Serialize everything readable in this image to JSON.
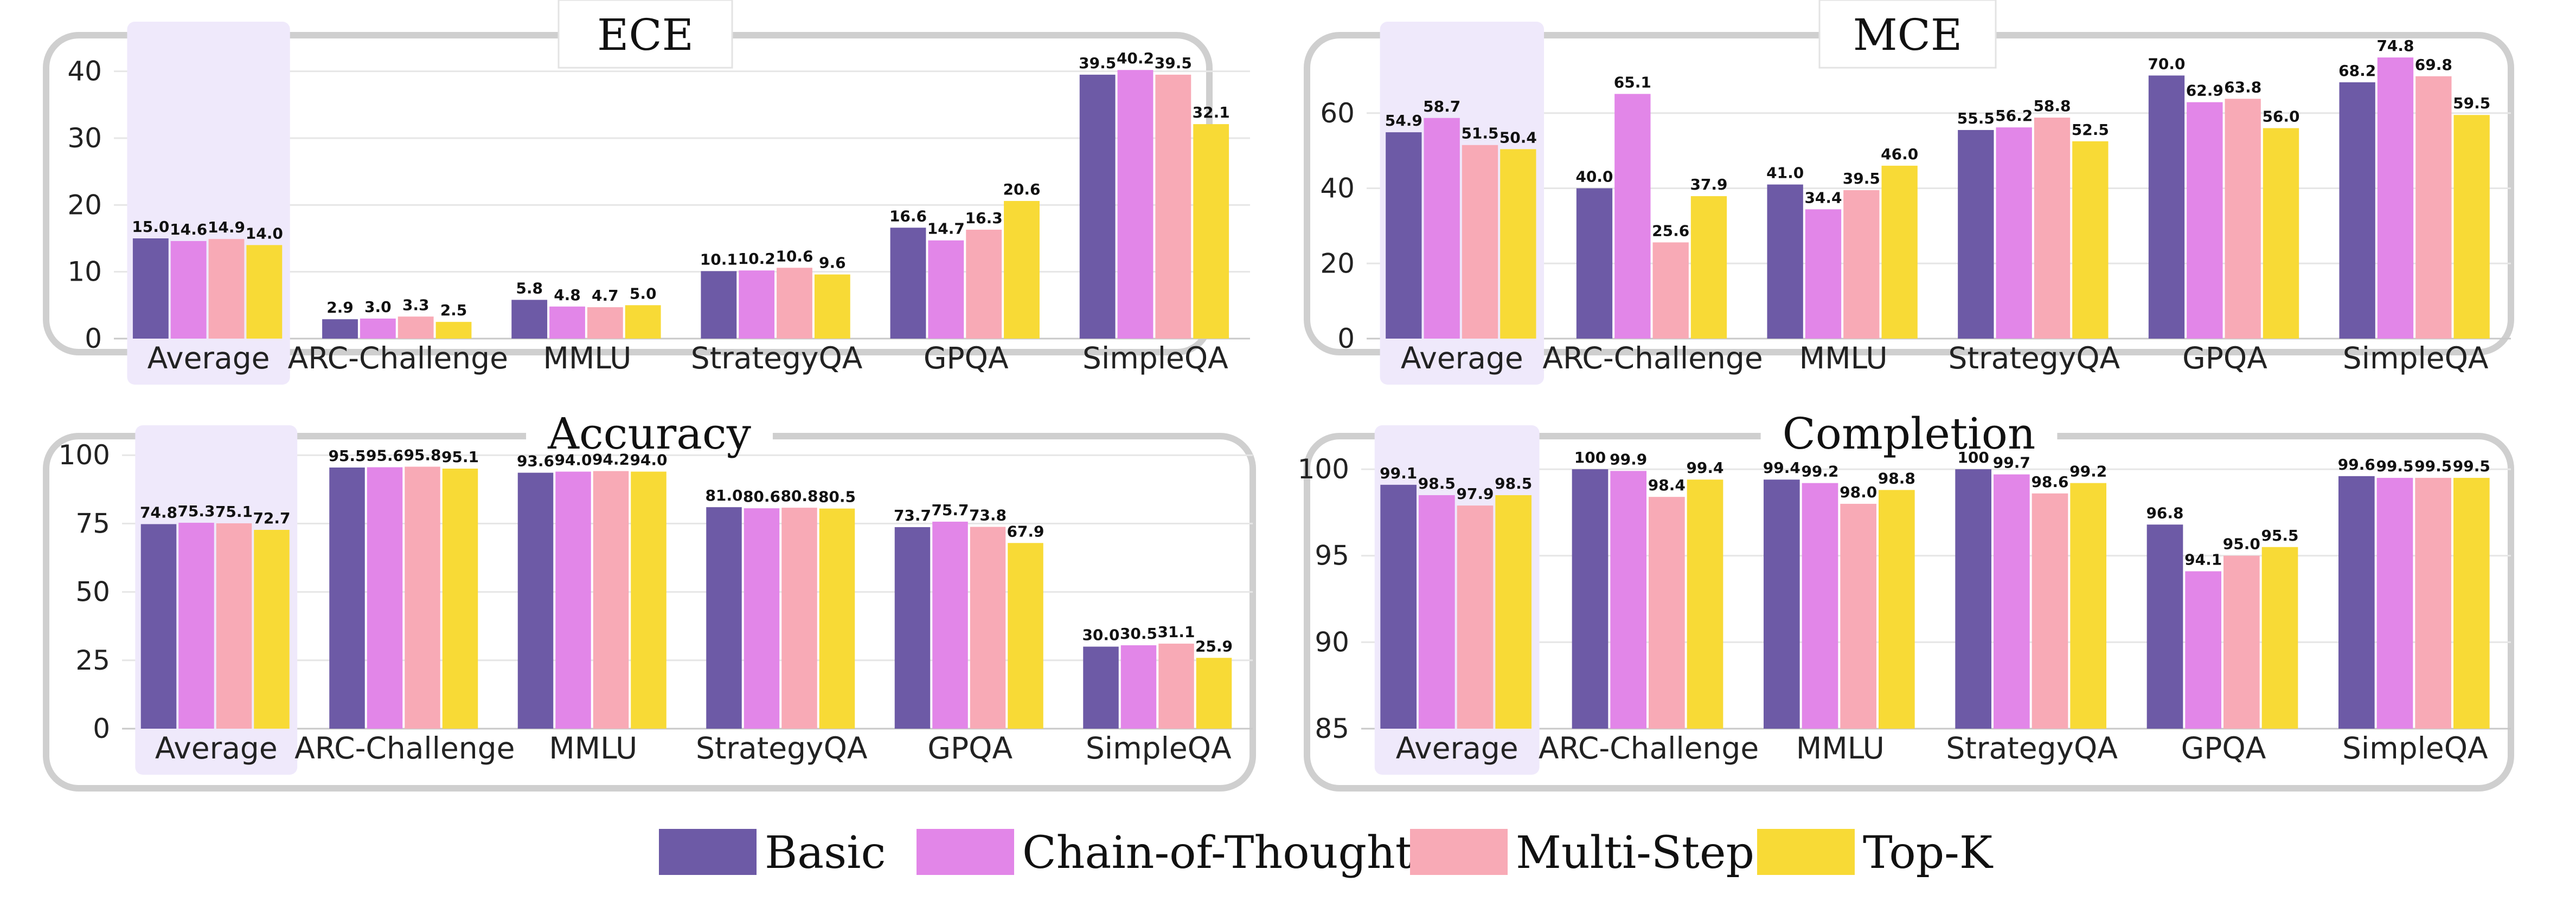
{
  "legend": {
    "items": [
      {
        "label": "Basic",
        "color": "#6d5aa6"
      },
      {
        "label": "Chain-of-Thought",
        "color": "#e286e8"
      },
      {
        "label": "Multi-Step",
        "color": "#f8aab6"
      },
      {
        "label": "Top-K",
        "color": "#f8da36"
      }
    ]
  },
  "highlight_color": "#efe9fb",
  "chart_data": [
    {
      "type": "bar",
      "title": "ECE",
      "categories": [
        "Average",
        "ARC-Challenge",
        "MMLU",
        "StrategyQA",
        "GPQA",
        "SimpleQA"
      ],
      "highlighted_category": "Average",
      "yticks": [
        0,
        10,
        20,
        30,
        40
      ],
      "ylim": [
        0,
        45
      ],
      "series": [
        {
          "name": "Basic",
          "values": [
            15.0,
            2.9,
            5.8,
            10.1,
            16.6,
            39.5
          ],
          "labels": [
            "15.0",
            "2.9",
            "5.8",
            "10.1",
            "16.6",
            "39.5"
          ]
        },
        {
          "name": "Chain-of-Thought",
          "values": [
            14.6,
            3.0,
            4.8,
            10.2,
            14.7,
            40.2
          ],
          "labels": [
            "14.6",
            "3.0",
            "4.8",
            "10.2",
            "14.7",
            "40.2"
          ]
        },
        {
          "name": "Multi-Step",
          "values": [
            14.9,
            3.3,
            4.7,
            10.6,
            16.3,
            39.5
          ],
          "labels": [
            "14.9",
            "3.3",
            "4.7",
            "10.6",
            "16.3",
            "39.5"
          ]
        },
        {
          "name": "Top-K",
          "values": [
            14.0,
            2.5,
            5.0,
            9.6,
            20.6,
            32.1
          ],
          "labels": [
            "14.0",
            "2.5",
            "5.0",
            "9.6",
            "20.6",
            "32.1"
          ]
        }
      ]
    },
    {
      "type": "bar",
      "title": "MCE",
      "categories": [
        "Average",
        "ARC-Challenge",
        "MMLU",
        "StrategyQA",
        "GPQA",
        "SimpleQA"
      ],
      "highlighted_category": "Average",
      "yticks": [
        0,
        20,
        40,
        60
      ],
      "ylim": [
        0,
        80
      ],
      "series": [
        {
          "name": "Basic",
          "values": [
            54.9,
            40.0,
            41.0,
            55.5,
            70.0,
            68.2
          ],
          "labels": [
            "54.9",
            "40.0",
            "41.0",
            "55.5",
            "70.0",
            "68.2"
          ]
        },
        {
          "name": "Chain-of-Thought",
          "values": [
            58.7,
            65.1,
            34.4,
            56.2,
            62.9,
            74.8
          ],
          "labels": [
            "58.7",
            "65.1",
            "34.4",
            "56.2",
            "62.9",
            "74.8"
          ]
        },
        {
          "name": "Multi-Step",
          "values": [
            51.5,
            25.6,
            39.5,
            58.8,
            63.8,
            69.8
          ],
          "labels": [
            "51.5",
            "25.6",
            "39.5",
            "58.8",
            "63.8",
            "69.8"
          ]
        },
        {
          "name": "Top-K",
          "values": [
            50.4,
            37.9,
            46.0,
            52.5,
            56.0,
            59.5
          ],
          "labels": [
            "50.4",
            "37.9",
            "46.0",
            "52.5",
            "56.0",
            "59.5"
          ]
        }
      ]
    },
    {
      "type": "bar",
      "title": "Accuracy",
      "categories": [
        "Average",
        "ARC-Challenge",
        "MMLU",
        "StrategyQA",
        "GPQA",
        "SimpleQA"
      ],
      "highlighted_category": "Average",
      "yticks": [
        0,
        25,
        50,
        75,
        100
      ],
      "ylim": [
        0,
        105
      ],
      "series": [
        {
          "name": "Basic",
          "values": [
            74.8,
            95.5,
            93.6,
            81.0,
            73.7,
            30.0
          ],
          "labels": [
            "74.8",
            "95.5",
            "93.6",
            "81.0",
            "73.7",
            "30.0"
          ]
        },
        {
          "name": "Chain-of-Thought",
          "values": [
            75.3,
            95.6,
            94.0,
            80.6,
            75.7,
            30.5
          ],
          "labels": [
            "75.3",
            "95.6",
            "94.0",
            "80.6",
            "75.7",
            "30.5"
          ]
        },
        {
          "name": "Multi-Step",
          "values": [
            75.1,
            95.8,
            94.2,
            80.8,
            73.8,
            31.1
          ],
          "labels": [
            "75.1",
            "95.8",
            "94.2",
            "80.8",
            "73.8",
            "31.1"
          ]
        },
        {
          "name": "Top-K",
          "values": [
            72.7,
            95.1,
            94.0,
            80.5,
            67.9,
            25.9
          ],
          "labels": [
            "72.7",
            "95.1",
            "94.0",
            "80.5",
            "67.9",
            "25.9"
          ]
        }
      ]
    },
    {
      "type": "bar",
      "title": "Completion",
      "categories": [
        "Average",
        "ARC-Challenge",
        "MMLU",
        "StrategyQA",
        "GPQA",
        "SimpleQA"
      ],
      "highlighted_category": "Average",
      "yticks": [
        85,
        90,
        95,
        100
      ],
      "ylim": [
        85,
        101.6
      ],
      "series": [
        {
          "name": "Basic",
          "values": [
            99.1,
            100,
            99.4,
            100,
            96.8,
            99.6
          ],
          "labels": [
            "99.1",
            "100",
            "99.4",
            "100",
            "96.8",
            "99.6"
          ]
        },
        {
          "name": "Chain-of-Thought",
          "values": [
            98.5,
            99.9,
            99.2,
            99.7,
            94.1,
            99.5
          ],
          "labels": [
            "98.5",
            "99.9",
            "99.2",
            "99.7",
            "94.1",
            "99.5"
          ]
        },
        {
          "name": "Multi-Step",
          "values": [
            97.9,
            98.4,
            98.0,
            98.6,
            95.0,
            99.5
          ],
          "labels": [
            "97.9",
            "98.4",
            "98.0",
            "98.6",
            "95.0",
            "99.5"
          ]
        },
        {
          "name": "Top-K",
          "values": [
            98.5,
            99.4,
            98.8,
            99.2,
            95.5,
            99.5
          ],
          "labels": [
            "98.5",
            "99.4",
            "98.8",
            "99.2",
            "95.5",
            "99.5"
          ]
        }
      ]
    }
  ]
}
